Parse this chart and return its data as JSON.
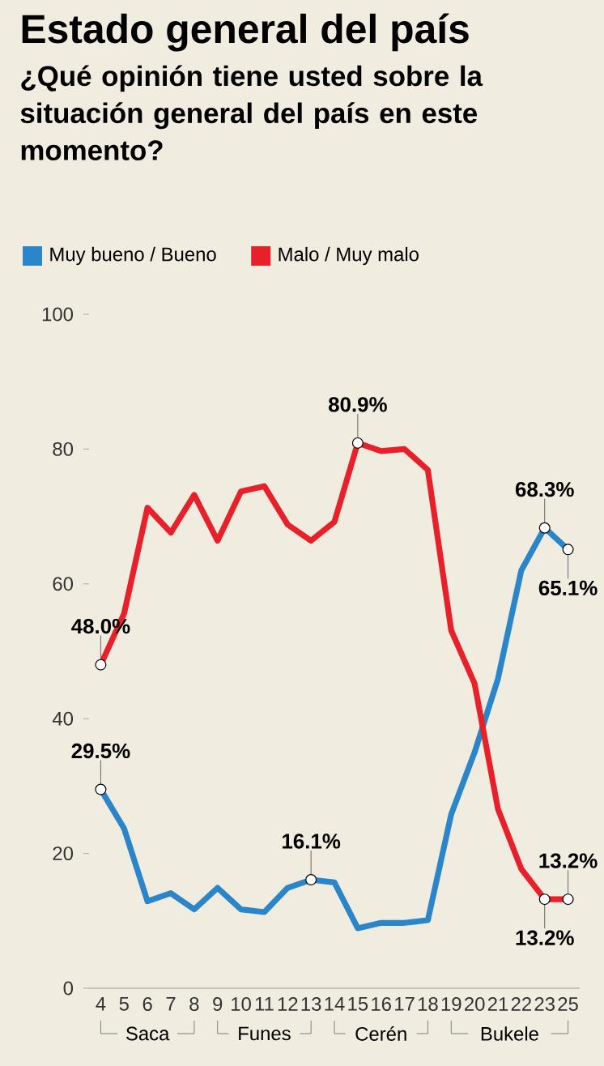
{
  "chart_data": {
    "type": "line",
    "title": "Estado general del país",
    "subtitle": "¿Qué opinión tiene usted sobre la situación general del país en este momento?",
    "categories": [
      "4",
      "5",
      "6",
      "7",
      "8",
      "9",
      "10",
      "11",
      "12",
      "13",
      "14",
      "15",
      "16",
      "17",
      "18",
      "19",
      "20",
      "21",
      "22",
      "23",
      "25"
    ],
    "series": [
      {
        "name": "Muy bueno / Bueno",
        "color": "#2a86c8",
        "values": [
          29.5,
          23.7,
          12.9,
          14.1,
          11.7,
          14.9,
          11.7,
          11.3,
          14.9,
          16.1,
          15.7,
          8.9,
          9.7,
          9.7,
          10.1,
          25.8,
          35,
          45.9,
          62,
          68.3,
          65.1
        ],
        "value_labels": [
          "29.5%",
          null,
          null,
          null,
          null,
          null,
          null,
          null,
          null,
          "16.1%",
          null,
          null,
          null,
          null,
          null,
          null,
          null,
          null,
          null,
          "68.3%",
          "65.1%"
        ]
      },
      {
        "name": "Malo / Muy malo",
        "color": "#e8202a",
        "values": [
          48.0,
          55.6,
          71.3,
          67.6,
          73.2,
          66.4,
          73.7,
          74.5,
          68.8,
          66.4,
          69.2,
          80.9,
          79.7,
          80.0,
          76.9,
          53.1,
          45.2,
          26.6,
          17.7,
          13.2,
          13.2
        ],
        "value_labels": [
          "48.0%",
          null,
          null,
          null,
          null,
          null,
          null,
          null,
          null,
          null,
          null,
          "80.9%",
          null,
          null,
          null,
          null,
          null,
          null,
          null,
          "13.2%",
          "13.2%"
        ]
      }
    ],
    "ylim": [
      0,
      100
    ],
    "yticks": [
      0,
      20,
      40,
      60,
      80,
      100
    ],
    "legend": "top left",
    "annotations": [
      "Saca",
      "Funes",
      "Cerén",
      "Bukele"
    ]
  }
}
